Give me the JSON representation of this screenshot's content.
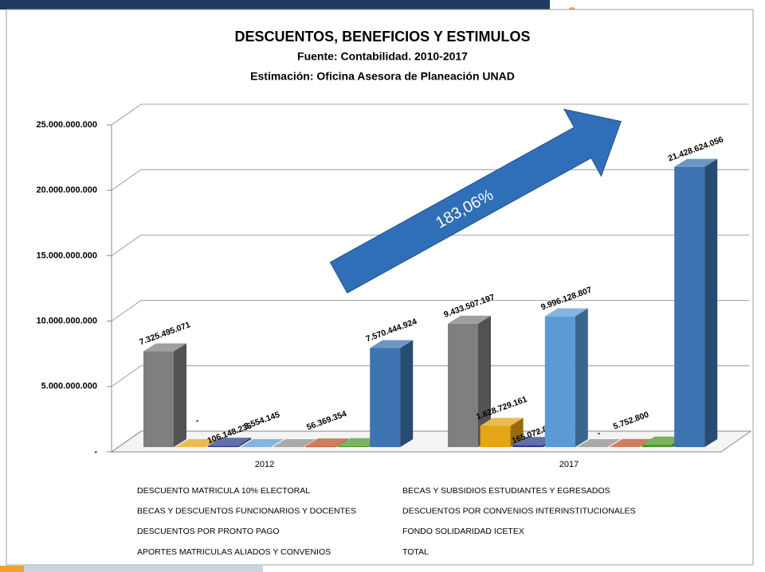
{
  "chart_data": {
    "type": "bar3d",
    "title": "DESCUENTOS, BENEFICIOS Y ESTIMULOS",
    "subtitle": [
      "Fuente: Contabilidad. 2010-2017",
      "Estimación: Oficina Asesora de Planeación UNAD"
    ],
    "annotation": "183,06%",
    "categories": [
      "2012",
      "2017"
    ],
    "series": [
      {
        "name": "DESCUENTO MATRICULA 10% ELECTORAL",
        "color": "#7f7f7f",
        "values": [
          7325495071,
          9433507197
        ],
        "value_labels": [
          "7.325.495.071",
          "9.433.507.197"
        ]
      },
      {
        "name": "BECAS Y SUBSIDIOS ESTUDIANTES Y EGRESADOS",
        "color": "#e6a516",
        "values": [
          0,
          1628729161
        ],
        "value_labels": [
          "-",
          "1.628.729.161"
        ]
      },
      {
        "name": "BECAS Y DESCUENTOS FUNCIONARIOS Y DOCENTES",
        "color": "#2e3f8f",
        "values": [
          106148236,
          165072800
        ],
        "value_labels": [
          "106.148.236",
          "165.072.800"
        ]
      },
      {
        "name": "DESCUENTOS POR CONVENIOS INTERINSTITUCIONALES",
        "color": "#5b9bd5",
        "values": [
          3554145,
          9996128807
        ],
        "value_labels": [
          "3.554.145",
          "9.996.128.807"
        ]
      },
      {
        "name": "DESCUENTOS POR PRONTO PAGO",
        "color": "#8c8c8c",
        "values": [
          0,
          0
        ],
        "value_labels": [
          null,
          "-"
        ]
      },
      {
        "name": "FONDO SOLIDARIDAD ICETEX",
        "color": "#c0522a",
        "values": [
          56369354,
          5752800
        ],
        "value_labels": [
          "56.369.354",
          "5.752.800"
        ]
      },
      {
        "name": "APORTES MATRICULAS ALIADOS Y CONVENIOS",
        "color": "#4e9a2a",
        "values": [
          78878118,
          199433291
        ],
        "value_labels": [
          null,
          null
        ]
      },
      {
        "name": "TOTAL",
        "color": "#3d73b0",
        "values": [
          7570444924,
          21428624056
        ],
        "value_labels": [
          "7.570.444.924",
          "21.428.624.056"
        ]
      }
    ],
    "ylim": [
      0,
      25000000000
    ],
    "yticks": [
      {
        "value": 0,
        "label": "-"
      },
      {
        "value": 5000000000,
        "label": "5.000.000.000"
      },
      {
        "value": 10000000000,
        "label": "10.000.000.000"
      },
      {
        "value": 15000000000,
        "label": "15.000.000.000"
      },
      {
        "value": 20000000000,
        "label": "20.000.000.000"
      },
      {
        "value": 25000000000,
        "label": "25.000.000.000"
      }
    ],
    "grid": true
  }
}
